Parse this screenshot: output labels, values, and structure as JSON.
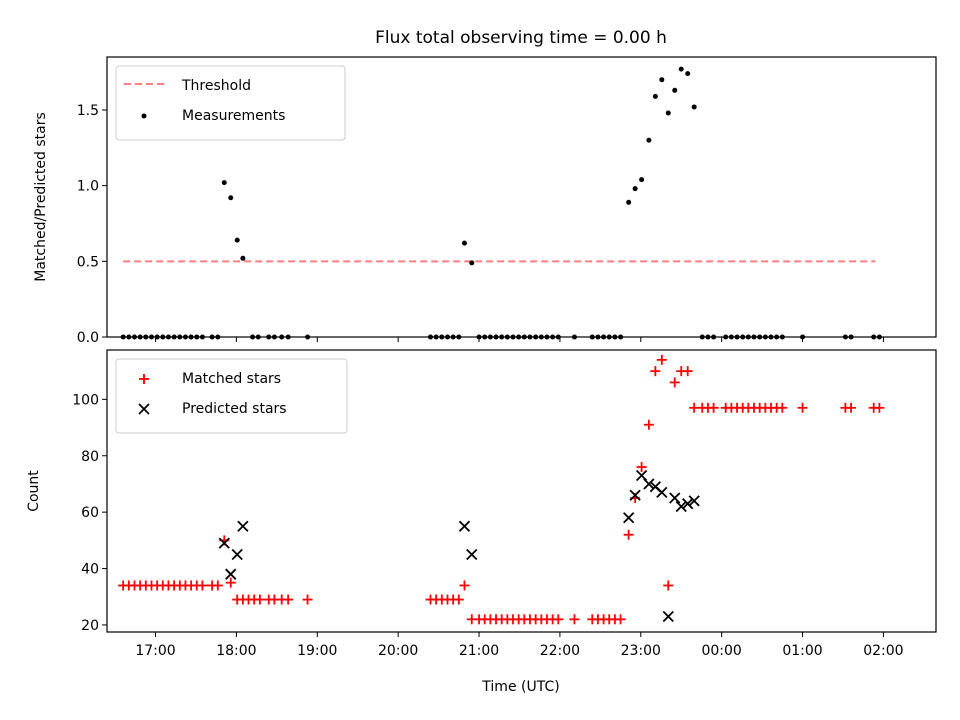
{
  "figure": {
    "title": "Flux total observing time = 0.00 h",
    "xlabel": "Time (UTC)",
    "xticks": [
      "17:00",
      "18:00",
      "19:00",
      "20:00",
      "21:00",
      "22:00",
      "23:00",
      "00:00",
      "01:00",
      "02:00"
    ]
  },
  "chart_data": [
    {
      "type": "scatter",
      "title": "Flux total observing time = 0.00 h",
      "xlabel": "",
      "ylabel": "Matched/Predicted stars",
      "xlim": [
        16.4,
        26.65
      ],
      "ylim": [
        0.0,
        1.85
      ],
      "yticks": [
        0.0,
        0.5,
        1.0,
        1.5
      ],
      "ytick_labels": [
        "0.0",
        "0.5",
        "1.0",
        "1.5"
      ],
      "grid": false,
      "legend": "top-left",
      "threshold": {
        "name": "Threshold",
        "value": 0.5,
        "x": [
          16.6,
          25.9
        ],
        "color": "#ff7f7f"
      },
      "series": [
        {
          "name": "Measurements",
          "color": "#000000",
          "points": [
            [
              16.6,
              0
            ],
            [
              16.67,
              0
            ],
            [
              16.74,
              0
            ],
            [
              16.81,
              0
            ],
            [
              16.88,
              0
            ],
            [
              16.95,
              0
            ],
            [
              17.02,
              0
            ],
            [
              17.09,
              0
            ],
            [
              17.16,
              0
            ],
            [
              17.23,
              0
            ],
            [
              17.3,
              0
            ],
            [
              17.37,
              0
            ],
            [
              17.44,
              0
            ],
            [
              17.51,
              0
            ],
            [
              17.58,
              0
            ],
            [
              17.7,
              0
            ],
            [
              17.77,
              0
            ],
            [
              17.85,
              1.02
            ],
            [
              17.93,
              0.92
            ],
            [
              18.01,
              0.64
            ],
            [
              18.08,
              0.52
            ],
            [
              18.2,
              0
            ],
            [
              18.27,
              0
            ],
            [
              18.4,
              0
            ],
            [
              18.47,
              0
            ],
            [
              18.56,
              0
            ],
            [
              18.64,
              0
            ],
            [
              18.88,
              0
            ],
            [
              20.4,
              0
            ],
            [
              20.47,
              0
            ],
            [
              20.54,
              0
            ],
            [
              20.61,
              0
            ],
            [
              20.68,
              0
            ],
            [
              20.75,
              0
            ],
            [
              20.82,
              0.62
            ],
            [
              20.91,
              0.49
            ],
            [
              21.0,
              0
            ],
            [
              21.07,
              0
            ],
            [
              21.14,
              0
            ],
            [
              21.21,
              0
            ],
            [
              21.28,
              0
            ],
            [
              21.35,
              0
            ],
            [
              21.42,
              0
            ],
            [
              21.49,
              0
            ],
            [
              21.56,
              0
            ],
            [
              21.63,
              0
            ],
            [
              21.7,
              0
            ],
            [
              21.77,
              0
            ],
            [
              21.84,
              0
            ],
            [
              21.91,
              0
            ],
            [
              21.98,
              0
            ],
            [
              22.18,
              0
            ],
            [
              22.4,
              0
            ],
            [
              22.47,
              0
            ],
            [
              22.54,
              0
            ],
            [
              22.61,
              0
            ],
            [
              22.68,
              0
            ],
            [
              22.75,
              0
            ],
            [
              22.85,
              0.89
            ],
            [
              22.93,
              0.98
            ],
            [
              23.01,
              1.04
            ],
            [
              23.1,
              1.3
            ],
            [
              23.18,
              1.59
            ],
            [
              23.26,
              1.7
            ],
            [
              23.34,
              1.48
            ],
            [
              23.42,
              1.63
            ],
            [
              23.5,
              1.77
            ],
            [
              23.58,
              1.74
            ],
            [
              23.66,
              1.52
            ],
            [
              23.76,
              0
            ],
            [
              23.83,
              0
            ],
            [
              23.9,
              0
            ],
            [
              24.05,
              0
            ],
            [
              24.12,
              0
            ],
            [
              24.19,
              0
            ],
            [
              24.26,
              0
            ],
            [
              24.33,
              0
            ],
            [
              24.4,
              0
            ],
            [
              24.47,
              0
            ],
            [
              24.54,
              0
            ],
            [
              24.61,
              0
            ],
            [
              24.68,
              0
            ],
            [
              24.75,
              0
            ],
            [
              25.0,
              0
            ],
            [
              25.53,
              0
            ],
            [
              25.6,
              0
            ],
            [
              25.88,
              0
            ],
            [
              25.95,
              0
            ]
          ]
        }
      ]
    },
    {
      "type": "scatter",
      "xlabel": "Time (UTC)",
      "ylabel": "Count",
      "xlim": [
        16.4,
        26.65
      ],
      "ylim": [
        17.5,
        117.5
      ],
      "yticks": [
        20,
        40,
        60,
        80,
        100
      ],
      "ytick_labels": [
        "20",
        "40",
        "60",
        "80",
        "100"
      ],
      "grid": false,
      "legend": "top-left",
      "series": [
        {
          "name": "Matched stars",
          "marker": "plus",
          "color": "#ff0000",
          "points": [
            [
              16.6,
              34
            ],
            [
              16.67,
              34
            ],
            [
              16.74,
              34
            ],
            [
              16.81,
              34
            ],
            [
              16.88,
              34
            ],
            [
              16.95,
              34
            ],
            [
              17.02,
              34
            ],
            [
              17.09,
              34
            ],
            [
              17.16,
              34
            ],
            [
              17.23,
              34
            ],
            [
              17.3,
              34
            ],
            [
              17.37,
              34
            ],
            [
              17.44,
              34
            ],
            [
              17.51,
              34
            ],
            [
              17.58,
              34
            ],
            [
              17.7,
              34
            ],
            [
              17.77,
              34
            ],
            [
              17.85,
              50
            ],
            [
              17.93,
              35
            ],
            [
              18.01,
              29
            ],
            [
              18.08,
              29
            ],
            [
              18.15,
              29
            ],
            [
              18.22,
              29
            ],
            [
              18.29,
              29
            ],
            [
              18.4,
              29
            ],
            [
              18.47,
              29
            ],
            [
              18.56,
              29
            ],
            [
              18.64,
              29
            ],
            [
              18.88,
              29
            ],
            [
              20.4,
              29
            ],
            [
              20.47,
              29
            ],
            [
              20.54,
              29
            ],
            [
              20.61,
              29
            ],
            [
              20.68,
              29
            ],
            [
              20.75,
              29
            ],
            [
              20.82,
              34
            ],
            [
              20.91,
              22
            ],
            [
              21.0,
              22
            ],
            [
              21.07,
              22
            ],
            [
              21.14,
              22
            ],
            [
              21.21,
              22
            ],
            [
              21.28,
              22
            ],
            [
              21.35,
              22
            ],
            [
              21.42,
              22
            ],
            [
              21.49,
              22
            ],
            [
              21.56,
              22
            ],
            [
              21.63,
              22
            ],
            [
              21.7,
              22
            ],
            [
              21.77,
              22
            ],
            [
              21.84,
              22
            ],
            [
              21.91,
              22
            ],
            [
              21.98,
              22
            ],
            [
              22.18,
              22
            ],
            [
              22.4,
              22
            ],
            [
              22.47,
              22
            ],
            [
              22.54,
              22
            ],
            [
              22.61,
              22
            ],
            [
              22.68,
              22
            ],
            [
              22.75,
              22
            ],
            [
              22.85,
              52
            ],
            [
              22.93,
              65
            ],
            [
              23.01,
              76
            ],
            [
              23.1,
              91
            ],
            [
              23.18,
              110
            ],
            [
              23.26,
              114
            ],
            [
              23.34,
              34
            ],
            [
              23.42,
              106
            ],
            [
              23.5,
              110
            ],
            [
              23.58,
              110
            ],
            [
              23.66,
              97
            ],
            [
              23.76,
              97
            ],
            [
              23.83,
              97
            ],
            [
              23.9,
              97
            ],
            [
              24.05,
              97
            ],
            [
              24.12,
              97
            ],
            [
              24.19,
              97
            ],
            [
              24.26,
              97
            ],
            [
              24.33,
              97
            ],
            [
              24.4,
              97
            ],
            [
              24.47,
              97
            ],
            [
              24.54,
              97
            ],
            [
              24.61,
              97
            ],
            [
              24.68,
              97
            ],
            [
              24.75,
              97
            ],
            [
              25.0,
              97
            ],
            [
              25.53,
              97
            ],
            [
              25.6,
              97
            ],
            [
              25.88,
              97
            ],
            [
              25.95,
              97
            ]
          ]
        },
        {
          "name": "Predicted stars",
          "marker": "x",
          "color": "#000000",
          "points": [
            [
              17.85,
              49
            ],
            [
              17.93,
              38
            ],
            [
              18.01,
              45
            ],
            [
              18.08,
              55
            ],
            [
              20.82,
              55
            ],
            [
              20.91,
              45
            ],
            [
              22.85,
              58
            ],
            [
              22.93,
              66
            ],
            [
              23.01,
              73
            ],
            [
              23.1,
              70
            ],
            [
              23.18,
              69
            ],
            [
              23.26,
              67
            ],
            [
              23.34,
              23
            ],
            [
              23.42,
              65
            ],
            [
              23.5,
              62
            ],
            [
              23.58,
              63
            ],
            [
              23.66,
              64
            ]
          ]
        }
      ]
    }
  ]
}
